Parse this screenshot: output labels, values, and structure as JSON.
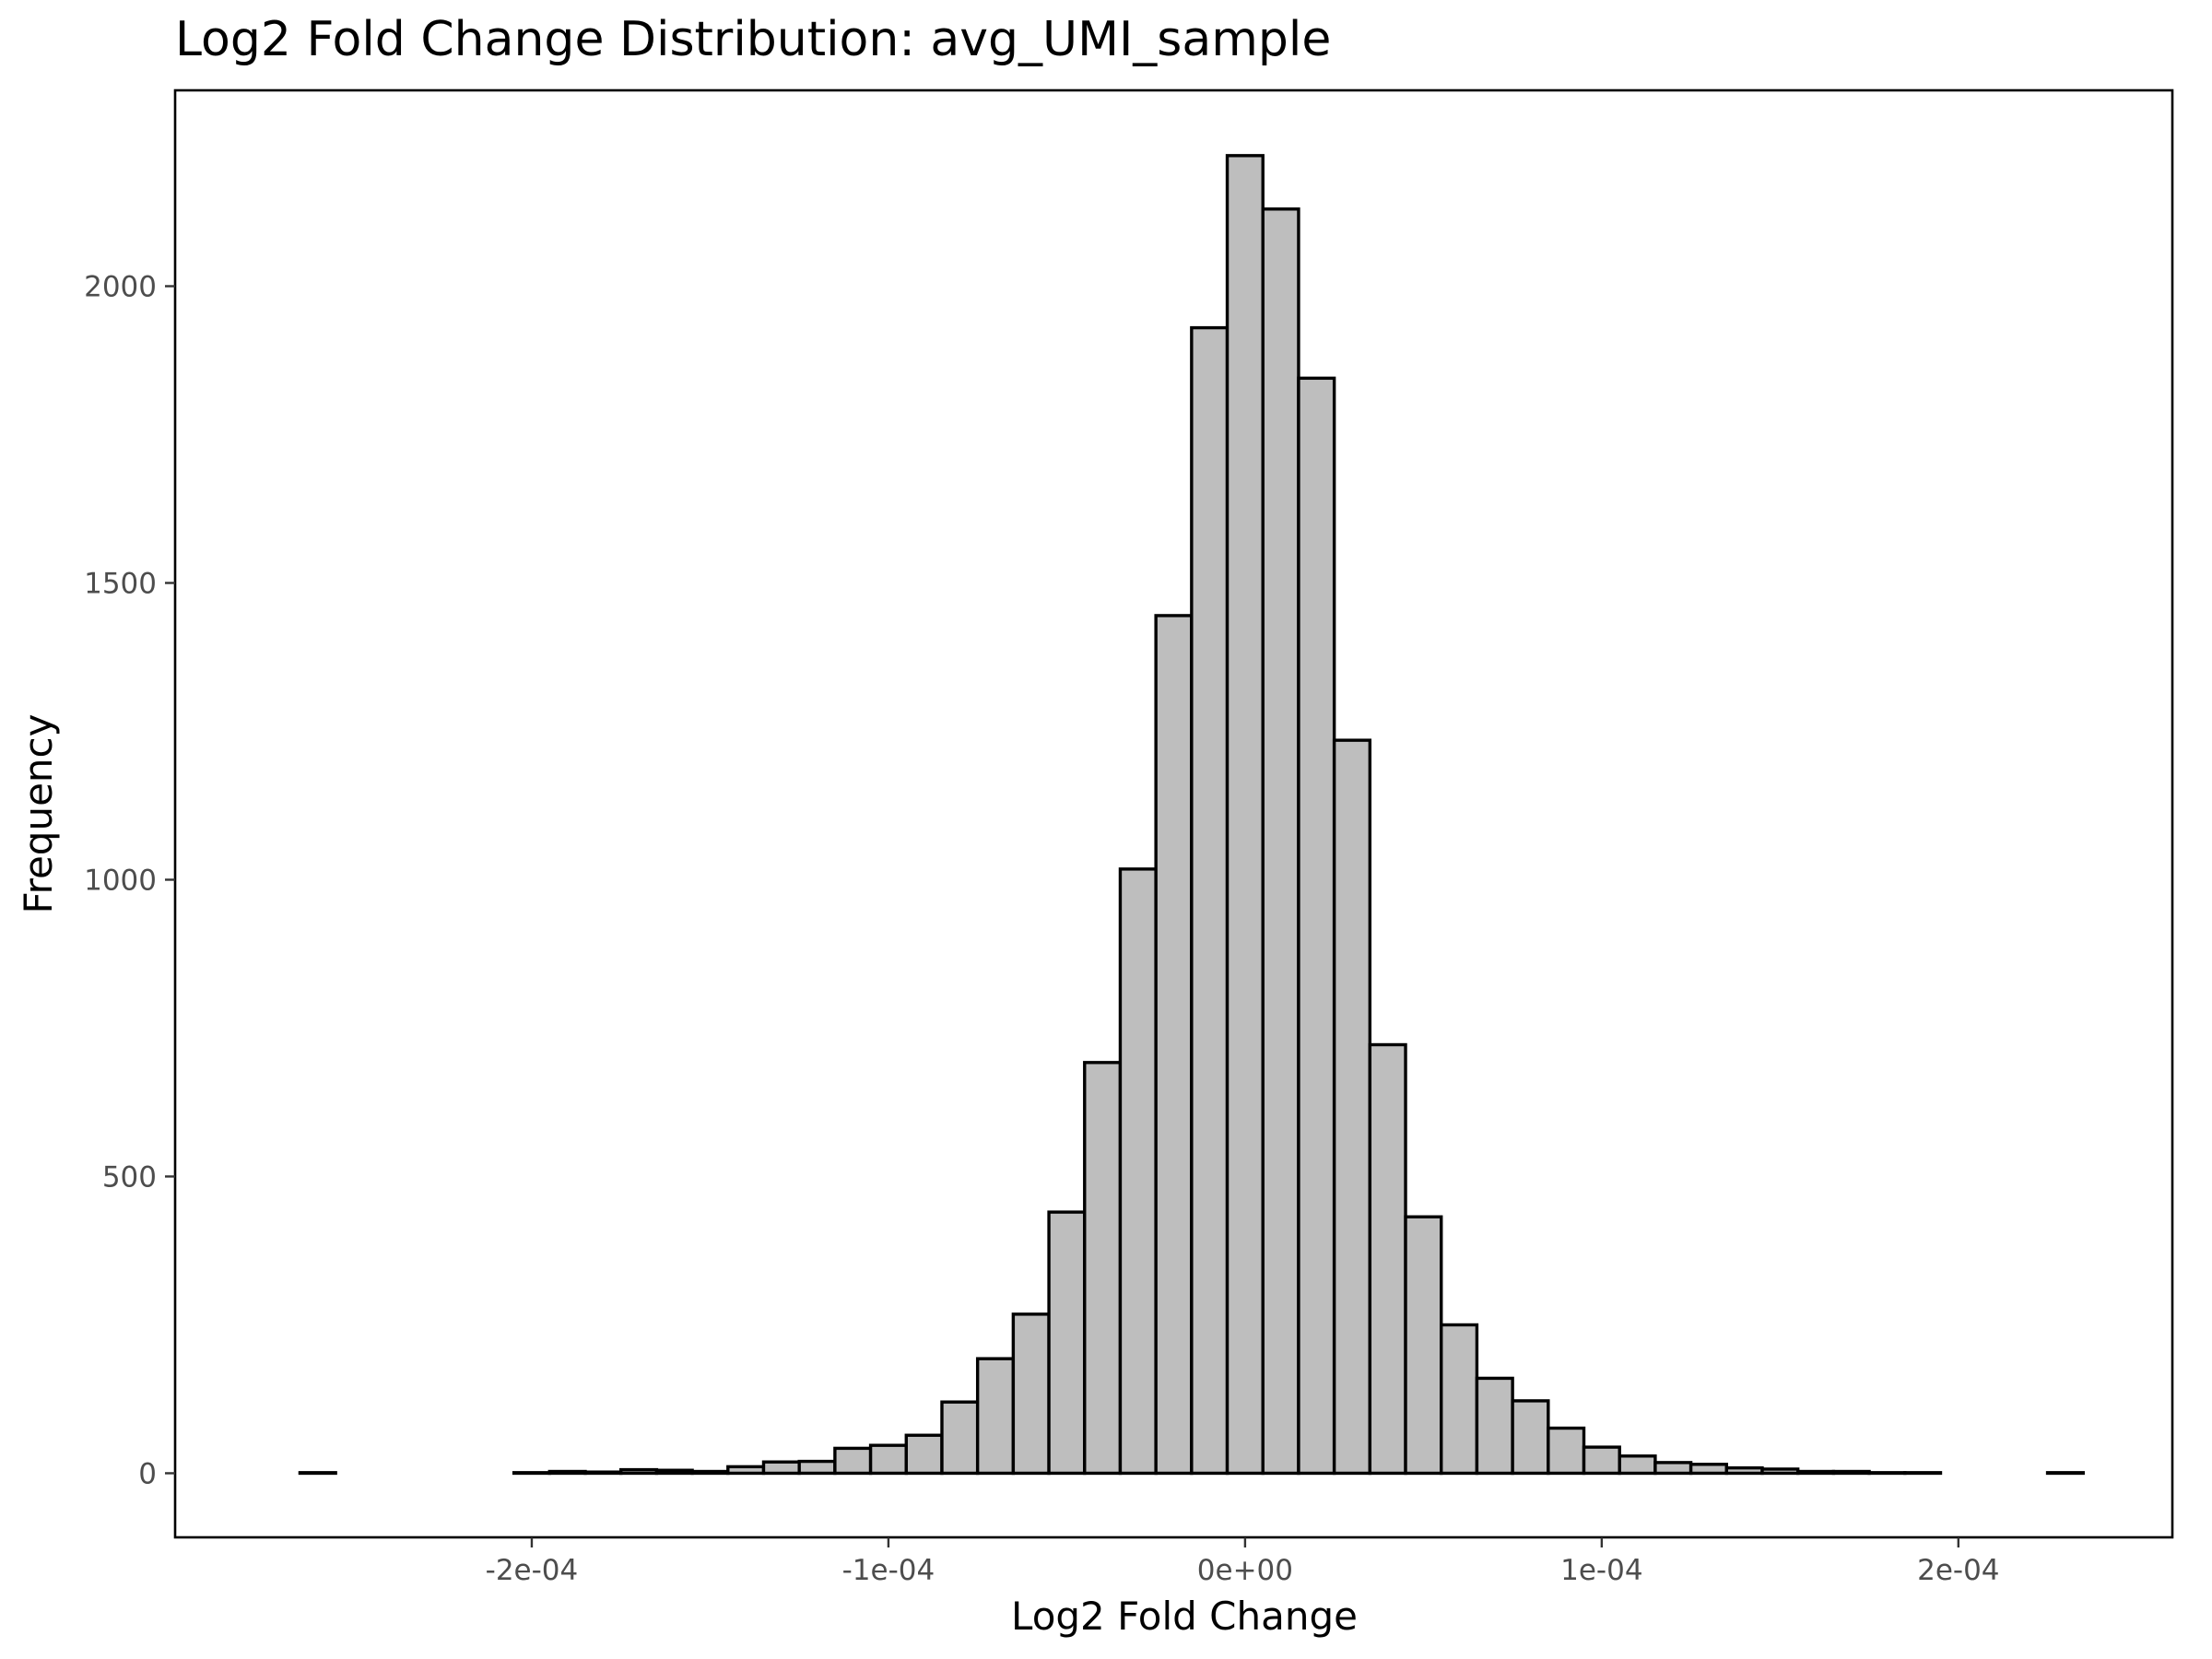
{
  "chart_data": {
    "type": "bar",
    "subtype": "histogram",
    "title": "Log2 Fold Change Distribution: avg_UMI_sample",
    "xlabel": "Log2 Fold Change",
    "ylabel": "Frequency",
    "bin_width": 1e-05,
    "xlim": [
      -0.0003,
      0.00026
    ],
    "ylim": [
      -108,
      2330
    ],
    "x_ticks": [
      {
        "value": -0.0002,
        "label": "-2e-04"
      },
      {
        "value": -0.0001,
        "label": "-1e-04"
      },
      {
        "value": 0,
        "label": "0e+00"
      },
      {
        "value": 0.0001,
        "label": "1e-04"
      },
      {
        "value": 0.0002,
        "label": "2e-04"
      }
    ],
    "y_ticks": [
      {
        "value": 0,
        "label": "0"
      },
      {
        "value": 500,
        "label": "500"
      },
      {
        "value": 1000,
        "label": "1000"
      },
      {
        "value": 1500,
        "label": "1500"
      },
      {
        "value": 2000,
        "label": "2000"
      }
    ],
    "bins_x": [
      -0.00026,
      -0.00025,
      -0.00024,
      -0.00023,
      -0.00022,
      -0.00021,
      -0.0002,
      -0.00019,
      -0.00018,
      -0.00017,
      -0.00016,
      -0.00015,
      -0.00014,
      -0.00013,
      -0.00012,
      -0.00011,
      -0.0001,
      -9e-05,
      -8e-05,
      -7e-05,
      -6e-05,
      -5e-05,
      -4e-05,
      -3e-05,
      -2e-05,
      -1e-05,
      0.0,
      1e-05,
      2e-05,
      3e-05,
      4e-05,
      5e-05,
      6e-05,
      7e-05,
      8e-05,
      9e-05,
      0.0001,
      0.00011,
      0.00012,
      0.00013,
      0.00014,
      0.00015,
      0.00016,
      0.00017,
      0.00018,
      0.00019,
      0.0002,
      0.00021,
      0.00022,
      0.00023
    ],
    "values": [
      1,
      0,
      0,
      0,
      0,
      0,
      1,
      3,
      2,
      6,
      5,
      3,
      11,
      19,
      20,
      42,
      47,
      64,
      120,
      193,
      268,
      440,
      692,
      1018,
      1445,
      1930,
      2220,
      2130,
      1845,
      1235,
      722,
      432,
      250,
      160,
      122,
      76,
      44,
      29,
      18,
      15,
      9,
      7,
      3,
      3,
      1,
      1,
      0,
      0,
      0,
      1
    ],
    "bar_fill": "#bebebe",
    "bar_outline": "#000000",
    "grid": false,
    "legend": "none"
  }
}
